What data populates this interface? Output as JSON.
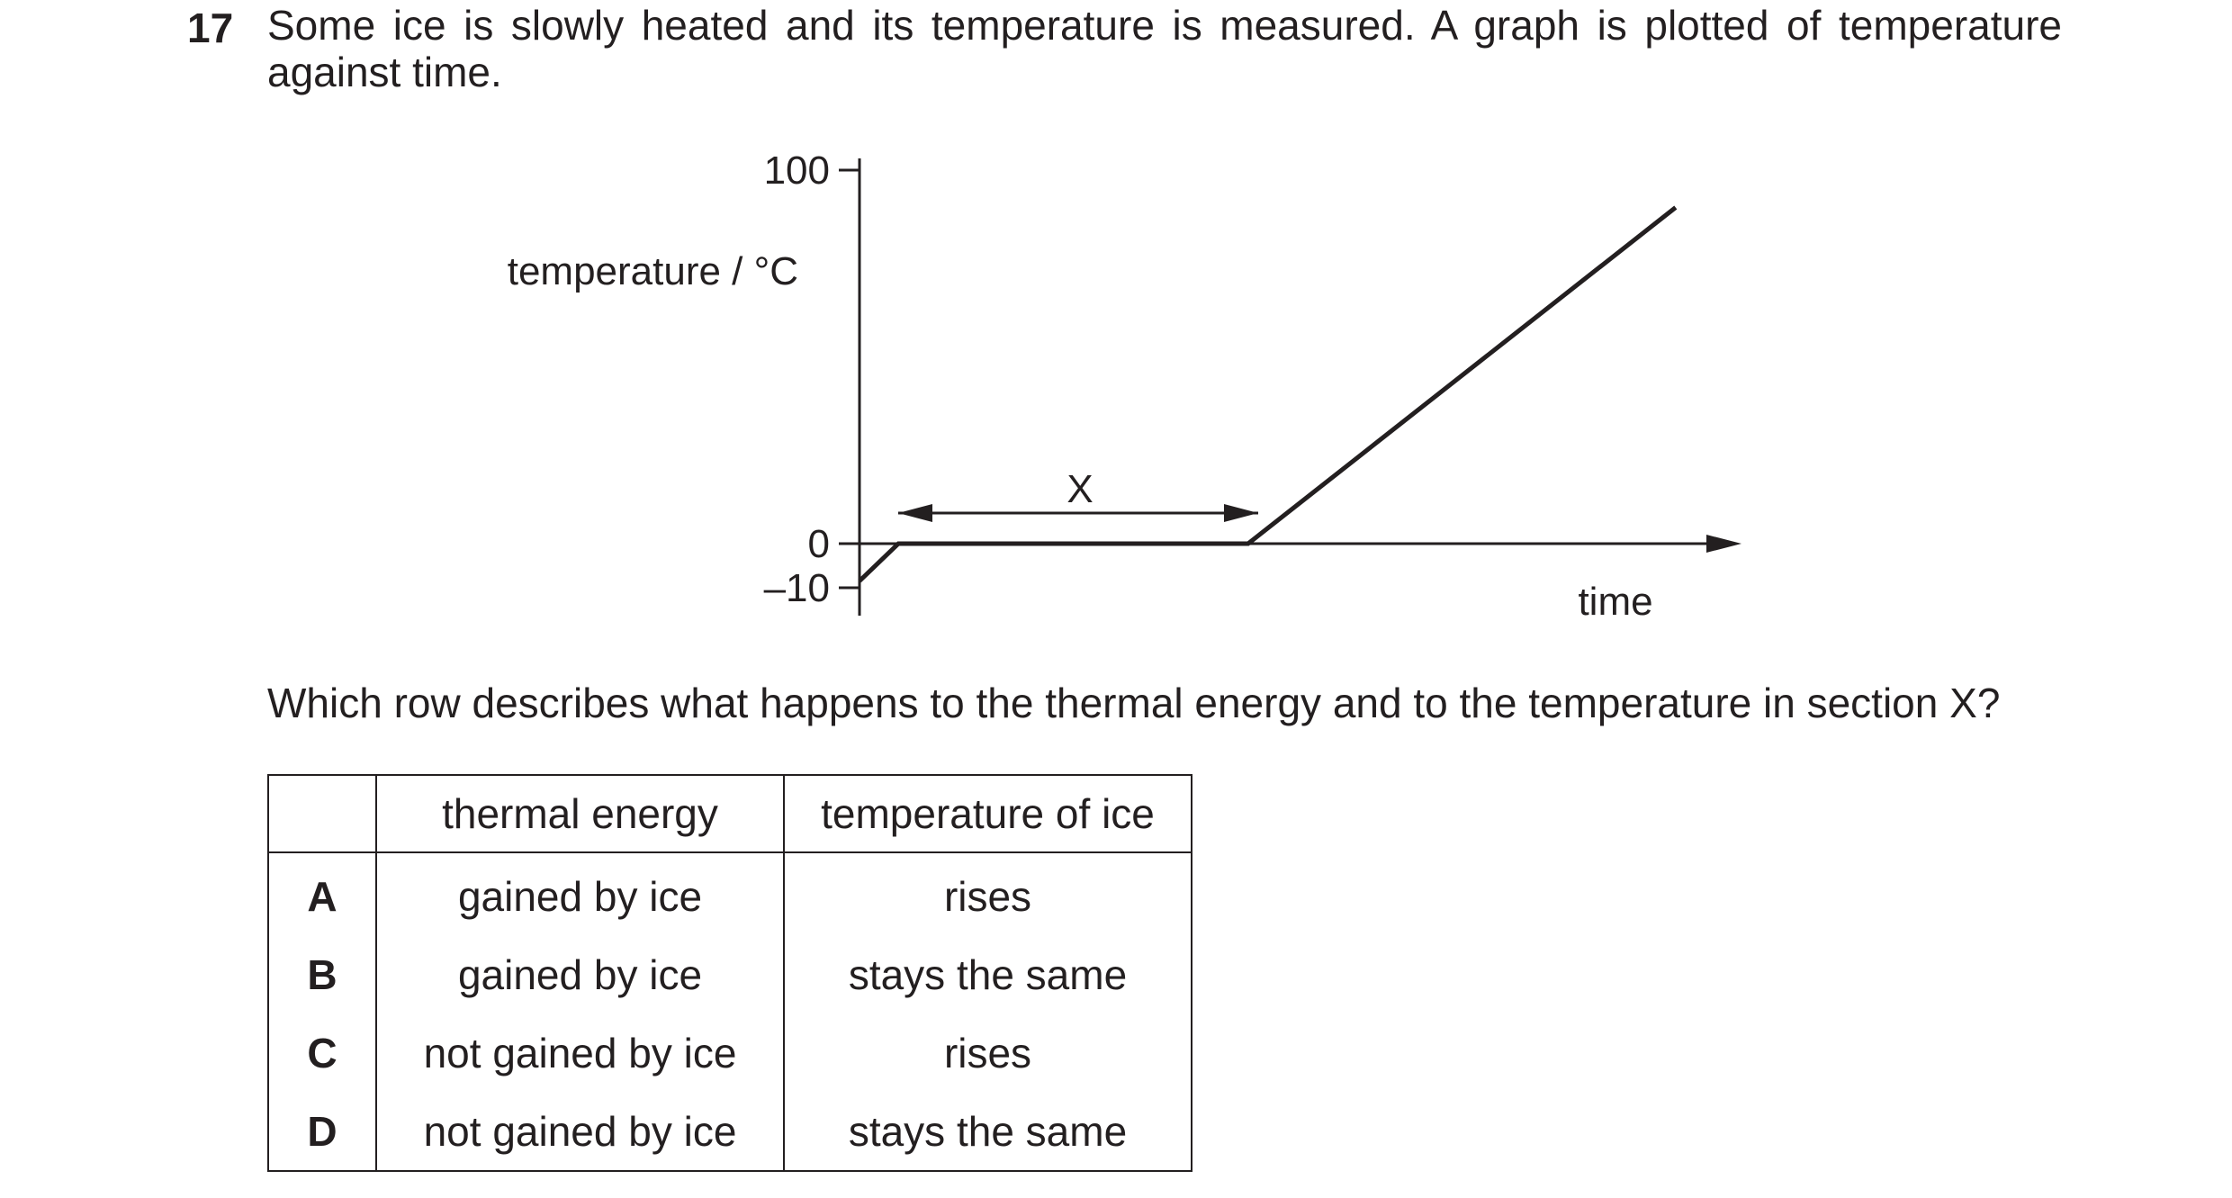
{
  "question": {
    "number": "17",
    "stem": "Some ice is slowly heated and its temperature is measured. A graph is plotted of temperature against time.",
    "prompt": "Which row describes what happens to the thermal energy and to the temperature in section X?"
  },
  "chart_data": {
    "type": "line",
    "ylabel": "temperature / °C",
    "xlabel": "time",
    "y_ticks": [
      "100",
      "0",
      "–10"
    ],
    "y_tick_values": [
      100,
      0,
      -10
    ],
    "ylim": [
      -10,
      100
    ],
    "grid": false,
    "annotation": "X",
    "series": [
      {
        "points": [
          [
            0,
            -10
          ],
          [
            1,
            0
          ],
          [
            10,
            0
          ],
          [
            21,
            90
          ]
        ]
      }
    ],
    "xlim": [
      0,
      22
    ]
  },
  "table": {
    "headers": [
      "",
      "thermal energy",
      "temperature of ice"
    ],
    "rows": [
      {
        "letter": "A",
        "thermal_energy": "gained by ice",
        "temperature": "rises"
      },
      {
        "letter": "B",
        "thermal_energy": "gained by ice",
        "temperature": "stays the same"
      },
      {
        "letter": "C",
        "thermal_energy": "not gained by ice",
        "temperature": "rises"
      },
      {
        "letter": "D",
        "thermal_energy": "not gained by ice",
        "temperature": "stays the same"
      }
    ]
  }
}
